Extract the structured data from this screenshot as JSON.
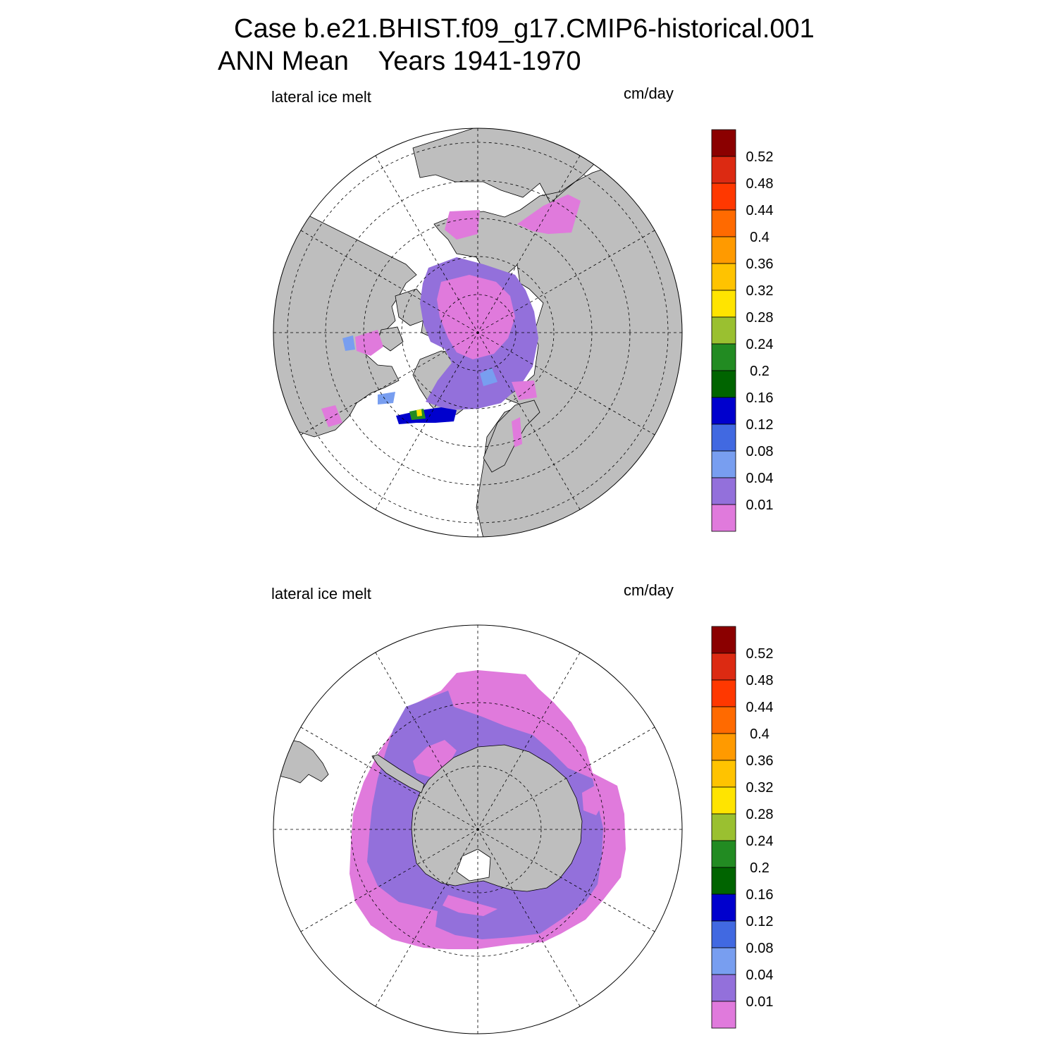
{
  "title": {
    "line1": "Case b.e21.BHIST.f09_g17.CMIP6-historical.001",
    "line2": "ANN Mean    Years 1941-1970"
  },
  "colors": {
    "land": "#bebebe",
    "ocean": "#ffffff",
    "lowest": "#e07adc",
    "low": "#9370db"
  },
  "legend": {
    "levels": [
      "0.52",
      "0.48",
      "0.44",
      "0.4",
      "0.36",
      "0.32",
      "0.28",
      "0.24",
      "0.2",
      "0.16",
      "0.12",
      "0.08",
      "0.04",
      "0.01"
    ],
    "colors": [
      "#8b0000",
      "#dc2a12",
      "#ff3800",
      "#ff6a00",
      "#ff9a00",
      "#ffc300",
      "#ffe400",
      "#9ac030",
      "#228b22",
      "#006400",
      "#0000cd",
      "#4169e1",
      "#789ef0",
      "#9370db",
      "#e07adc"
    ]
  },
  "panels": [
    {
      "hemisphere": "north",
      "left_label": "lateral ice melt",
      "right_label": "cm/day"
    },
    {
      "hemisphere": "south",
      "left_label": "lateral ice melt",
      "right_label": "cm/day"
    }
  ]
}
